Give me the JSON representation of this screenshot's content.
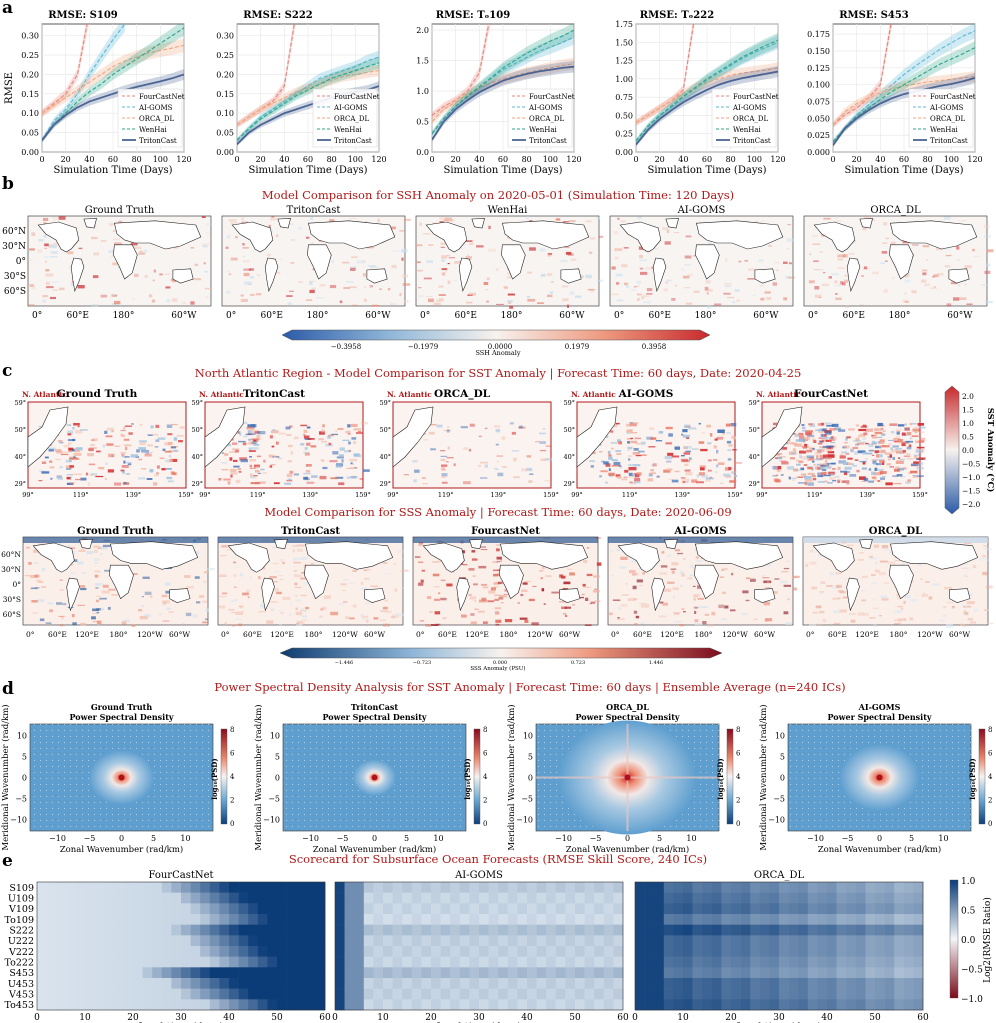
{
  "colors": {
    "title_red": "#b01818",
    "fourcast": "#e8837a",
    "aigoms": "#5bb7d6",
    "orcadl": "#f0a67e",
    "wenhai": "#2aa58a",
    "triton": "#4a6494",
    "ocean_bg": "#f7f4f2",
    "land_bg": "#ffffff"
  },
  "panel_letters": [
    "a",
    "b",
    "c",
    "d",
    "e"
  ],
  "chart_data": [
    {
      "id": "a",
      "type": "line",
      "xlabel": "Simulation Time (Days)",
      "ylabel": "RMSE",
      "x": [
        0,
        10,
        20,
        30,
        40,
        50,
        60,
        70,
        80,
        90,
        100,
        110,
        120
      ],
      "xticks": [
        "0",
        "20",
        "40",
        "60",
        "80",
        "100",
        "120"
      ],
      "legend": [
        "FourCastNet",
        "AI-GOMS",
        "ORCA_DL",
        "WenHai",
        "TritonCast"
      ],
      "subplots": [
        {
          "title": "RMSE: S109",
          "ylim": [
            0,
            0.33
          ],
          "yticks": [
            "0.00",
            "0.05",
            "0.10",
            "0.15",
            "0.20",
            "0.25",
            "0.30"
          ],
          "series": [
            {
              "name": "FourCastNet",
              "values": [
                0.1,
                0.125,
                0.15,
                0.2,
                0.36,
                null,
                null,
                null,
                null,
                null,
                null,
                null,
                null
              ]
            },
            {
              "name": "AI-GOMS",
              "values": [
                0.03,
                0.08,
                0.11,
                0.15,
                0.2,
                0.245,
                0.29,
                0.33,
                null,
                null,
                null,
                null,
                null
              ]
            },
            {
              "name": "ORCA_DL",
              "values": [
                0.1,
                0.12,
                0.14,
                0.16,
                0.18,
                0.2,
                0.22,
                0.235,
                0.245,
                0.255,
                0.262,
                0.268,
                0.275
              ]
            },
            {
              "name": "WenHai",
              "values": [
                0.03,
                0.07,
                0.1,
                0.13,
                0.155,
                0.175,
                0.2,
                0.22,
                0.24,
                0.26,
                0.28,
                0.3,
                0.32
              ]
            },
            {
              "name": "TritonCast",
              "values": [
                0.03,
                0.07,
                0.095,
                0.115,
                0.13,
                0.14,
                0.15,
                0.16,
                0.168,
                0.175,
                0.182,
                0.19,
                0.2
              ]
            }
          ]
        },
        {
          "title": "RMSE: S222",
          "ylim": [
            0,
            0.33
          ],
          "yticks": [
            "0.00",
            "0.05",
            "0.10",
            "0.15",
            "0.20",
            "0.25",
            "0.30"
          ],
          "series": [
            {
              "name": "FourCastNet",
              "values": [
                0.07,
                0.09,
                0.11,
                0.13,
                0.17,
                0.36,
                null,
                null,
                null,
                null,
                null,
                null,
                null
              ]
            },
            {
              "name": "AI-GOMS",
              "values": [
                0.03,
                0.06,
                0.09,
                0.11,
                0.13,
                0.15,
                0.17,
                0.19,
                0.2,
                0.21,
                0.22,
                0.235,
                0.245
              ]
            },
            {
              "name": "ORCA_DL",
              "values": [
                0.07,
                0.09,
                0.11,
                0.125,
                0.14,
                0.155,
                0.165,
                0.175,
                0.185,
                0.195,
                0.2,
                0.205,
                0.21
              ]
            },
            {
              "name": "WenHai",
              "values": [
                0.03,
                0.06,
                0.085,
                0.105,
                0.125,
                0.145,
                0.16,
                0.175,
                0.19,
                0.2,
                0.21,
                0.22,
                0.23
              ]
            },
            {
              "name": "TritonCast",
              "values": [
                0.02,
                0.05,
                0.07,
                0.085,
                0.1,
                0.11,
                0.12,
                0.13,
                0.14,
                0.15,
                0.155,
                0.16,
                0.17
              ]
            }
          ]
        },
        {
          "title": "RMSE: Tₒ109",
          "ylim": [
            0,
            2.1
          ],
          "yticks": [
            "0.0",
            "0.5",
            "1.0",
            "1.5",
            "2.0"
          ],
          "series": [
            {
              "name": "FourCastNet",
              "values": [
                0.6,
                0.75,
                0.85,
                1.0,
                1.3,
                2.3,
                null,
                null,
                null,
                null,
                null,
                null,
                null
              ]
            },
            {
              "name": "AI-GOMS",
              "values": [
                0.3,
                0.55,
                0.75,
                0.9,
                1.05,
                1.2,
                1.35,
                1.45,
                1.55,
                1.65,
                1.72,
                1.8,
                1.88
              ]
            },
            {
              "name": "ORCA_DL",
              "values": [
                0.5,
                0.7,
                0.82,
                0.95,
                1.05,
                1.13,
                1.2,
                1.25,
                1.3,
                1.34,
                1.38,
                1.42,
                1.45
              ]
            },
            {
              "name": "WenHai",
              "values": [
                0.3,
                0.55,
                0.75,
                0.92,
                1.07,
                1.22,
                1.38,
                1.5,
                1.62,
                1.72,
                1.82,
                1.9,
                2.0
              ]
            },
            {
              "name": "TritonCast",
              "values": [
                0.2,
                0.5,
                0.7,
                0.85,
                0.98,
                1.08,
                1.17,
                1.23,
                1.28,
                1.32,
                1.35,
                1.38,
                1.4
              ]
            }
          ]
        },
        {
          "title": "RMSE: Tₒ222",
          "ylim": [
            0,
            1.75
          ],
          "yticks": [
            "0.00",
            "0.25",
            "0.50",
            "0.75",
            "1.00",
            "1.25",
            "1.50",
            "1.75"
          ],
          "series": [
            {
              "name": "FourCastNet",
              "values": [
                0.4,
                0.5,
                0.6,
                0.7,
                0.85,
                1.9,
                null,
                null,
                null,
                null,
                null,
                null,
                null
              ]
            },
            {
              "name": "AI-GOMS",
              "values": [
                0.15,
                0.35,
                0.5,
                0.62,
                0.75,
                0.86,
                0.98,
                1.08,
                1.18,
                1.28,
                1.36,
                1.43,
                1.5
              ]
            },
            {
              "name": "ORCA_DL",
              "values": [
                0.4,
                0.5,
                0.6,
                0.7,
                0.8,
                0.88,
                0.95,
                1.0,
                1.05,
                1.08,
                1.1,
                1.12,
                1.15
              ]
            },
            {
              "name": "WenHai",
              "values": [
                0.15,
                0.35,
                0.5,
                0.63,
                0.76,
                0.88,
                1.0,
                1.1,
                1.2,
                1.3,
                1.38,
                1.46,
                1.53
              ]
            },
            {
              "name": "TritonCast",
              "values": [
                0.1,
                0.3,
                0.45,
                0.57,
                0.68,
                0.77,
                0.85,
                0.92,
                0.97,
                1.01,
                1.04,
                1.07,
                1.1
              ]
            }
          ]
        },
        {
          "title": "RMSE: S453",
          "ylim": [
            0,
            0.19
          ],
          "yticks": [
            "0.000",
            "0.025",
            "0.050",
            "0.075",
            "0.100",
            "0.125",
            "0.150",
            "0.175"
          ],
          "series": [
            {
              "name": "FourCastNet",
              "values": [
                0.04,
                0.055,
                0.065,
                0.08,
                0.1,
                0.2,
                null,
                null,
                null,
                null,
                null,
                null,
                null
              ]
            },
            {
              "name": "AI-GOMS",
              "values": [
                0.015,
                0.035,
                0.055,
                0.07,
                0.085,
                0.1,
                0.115,
                0.128,
                0.14,
                0.152,
                0.162,
                0.172,
                0.18
              ]
            },
            {
              "name": "ORCA_DL",
              "values": [
                0.04,
                0.06,
                0.072,
                0.08,
                0.088,
                0.094,
                0.098,
                0.101,
                0.104,
                0.106,
                0.108,
                0.11,
                0.112
              ]
            },
            {
              "name": "WenHai",
              "values": [
                0.015,
                0.035,
                0.052,
                0.065,
                0.078,
                0.09,
                0.1,
                0.11,
                0.12,
                0.13,
                0.138,
                0.146,
                0.155
              ]
            },
            {
              "name": "TritonCast",
              "values": [
                0.01,
                0.035,
                0.05,
                0.062,
                0.072,
                0.08,
                0.086,
                0.09,
                0.094,
                0.098,
                0.101,
                0.105,
                0.11
              ]
            }
          ]
        }
      ]
    },
    {
      "id": "b",
      "type": "heatmap",
      "title": "Model Comparison for SSH Anomaly on 2020-05-01 (Simulation Time: 120 Days)",
      "maps": [
        "Ground Truth",
        "TritonCast",
        "WenHai",
        "AI-GOMS",
        "ORCA_DL"
      ],
      "lat_ticks": [
        "60°N",
        "30°N",
        "0°",
        "30°S",
        "60°S"
      ],
      "lon_ticks": [
        "0°",
        "60°E",
        "180°",
        "60°W"
      ],
      "colorbar": {
        "label": "SSH Anomaly",
        "ticks": [
          "−0.3958",
          "−0.1979",
          "0.0000",
          "0.1979",
          "0.3958"
        ]
      }
    },
    {
      "id": "c1",
      "type": "heatmap",
      "title": "North Atlantic Region - Model Comparison for SST Anomaly | Forecast Time: 60 days, Date: 2020-04-25",
      "region_tag": "N. Atlantic",
      "maps": [
        "Ground Truth",
        "TritonCast",
        "ORCA_DL",
        "AI-GOMS",
        "FourCastNet"
      ],
      "lat_ticks": [
        "59°",
        "50°",
        "40°",
        "29°"
      ],
      "lon_ticks": [
        "99°",
        "119°",
        "139°",
        "159°"
      ],
      "colorbar": {
        "label": "SST Anomaly (°C)",
        "ticks": [
          "2.0",
          "1.5",
          "1.0",
          "0.5",
          "0.0",
          "−0.5",
          "−1.0",
          "−1.5",
          "−2.0"
        ]
      }
    },
    {
      "id": "c2",
      "type": "heatmap",
      "title": "Model Comparison for SSS Anomaly | Forecast Time: 60 days, Date: 2020-06-09",
      "maps": [
        "Ground Truth",
        "TritonCast",
        "FourcastNet",
        "AI-GOMS",
        "ORCA_DL"
      ],
      "lat_ticks": [
        "60°N",
        "30°N",
        "0°",
        "30°S",
        "60°S"
      ],
      "lon_ticks": [
        "0°",
        "60°E",
        "120°E",
        "180°",
        "120°W",
        "60°W"
      ],
      "colorbar": {
        "label": "SSS Anomaly (PSU)",
        "ticks": [
          "−1.446",
          "−0.723",
          "0.000",
          "0.723",
          "1.446"
        ]
      }
    },
    {
      "id": "d",
      "type": "heatmap",
      "title": "Power Spectral Density Analysis for SST Anomaly | Forecast Time: 60 days | Ensemble Average (n=240 ICs)",
      "subtitle_suffix": "Power Spectral Density",
      "maps": [
        "Ground Truth",
        "TritonCast",
        "ORCA_DL",
        "AI-GOMS"
      ],
      "xlabel": "Zonal Wavenumber (rad/km)",
      "ylabel": "Meridional Wavenumber (rad/km)",
      "xticks": [
        "−10",
        "−5",
        "0",
        "5",
        "10"
      ],
      "yticks": [
        "10",
        "5",
        "0",
        "−5",
        "−10"
      ],
      "colorbar": {
        "label": "log₁₀(PSD)",
        "ticks": [
          "8",
          "6",
          "4",
          "2",
          "0"
        ]
      }
    },
    {
      "id": "e",
      "type": "heatmap",
      "title": "Scorecard for Subsurface Ocean Forecasts (RMSE Skill Score, 240 ICs)",
      "maps": [
        "FourCastNet",
        "AI-GOMS",
        "ORCA_DL"
      ],
      "rows": [
        "S109",
        "U109",
        "V109",
        "To109",
        "S222",
        "U222",
        "V222",
        "To222",
        "S453",
        "U453",
        "V453",
        "To453"
      ],
      "xlabel": "Lead time (days)",
      "xticks": [
        "0",
        "10",
        "20",
        "30",
        "40",
        "50",
        "60"
      ],
      "colorbar": {
        "label": "Log2(RMSE Ratio)",
        "ticks": [
          "1.0",
          "0.5",
          "0.0",
          "−0.5",
          "−1.0"
        ]
      },
      "fourcastnet_breakdown_day": [
        42,
        45,
        48,
        50,
        44,
        47,
        49,
        52,
        38,
        43,
        46,
        51
      ],
      "aigoms_level": [
        0.35,
        0.25,
        0.25,
        0.2,
        0.45,
        0.3,
        0.3,
        0.25,
        0.5,
        0.3,
        0.3,
        0.25
      ],
      "orcadl_level": [
        0.75,
        0.8,
        0.85,
        0.7,
        0.95,
        0.8,
        0.8,
        0.75,
        0.7,
        0.85,
        0.85,
        0.9
      ]
    }
  ]
}
